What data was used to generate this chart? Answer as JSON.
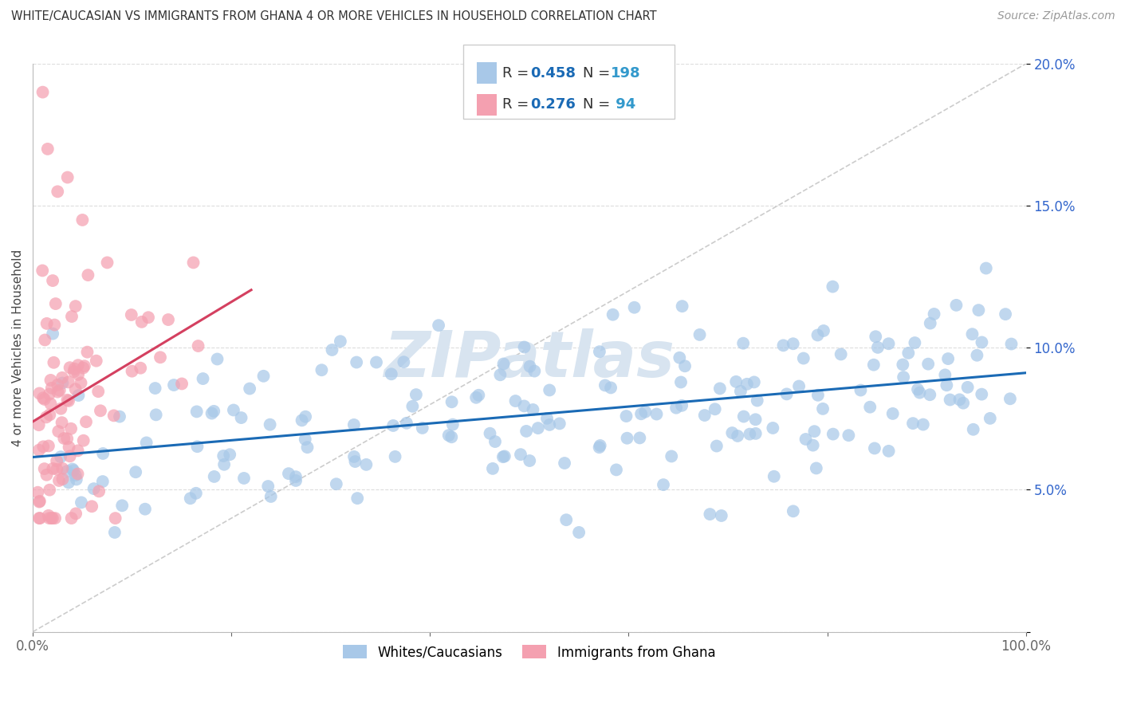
{
  "title": "WHITE/CAUCASIAN VS IMMIGRANTS FROM GHANA 4 OR MORE VEHICLES IN HOUSEHOLD CORRELATION CHART",
  "source": "Source: ZipAtlas.com",
  "ylabel": "4 or more Vehicles in Household",
  "xlim": [
    0,
    100
  ],
  "ylim": [
    0,
    20
  ],
  "xtick_positions": [
    0,
    20,
    40,
    60,
    80,
    100
  ],
  "xticklabels": [
    "0.0%",
    "",
    "",
    "",
    "",
    "100.0%"
  ],
  "ytick_positions": [
    0,
    5,
    10,
    15,
    20
  ],
  "yticklabels": [
    "",
    "5.0%",
    "10.0%",
    "15.0%",
    "20.0%"
  ],
  "blue_R": 0.458,
  "blue_N": 198,
  "pink_R": 0.276,
  "pink_N": 94,
  "blue_color": "#a8c8e8",
  "pink_color": "#f4a0b0",
  "blue_line_color": "#1a6ab5",
  "pink_line_color": "#d44060",
  "ref_line_color": "#cccccc",
  "value_color": "#1a6ab5",
  "n_color": "#3399cc",
  "watermark_color": "#d8e4f0",
  "grid_color": "#dddddd",
  "blue_line_start_y": 7.5,
  "blue_line_end_y": 9.3,
  "pink_line_start_y": 7.8,
  "pink_line_end_y": 9.5,
  "pink_line_end_x": 22
}
